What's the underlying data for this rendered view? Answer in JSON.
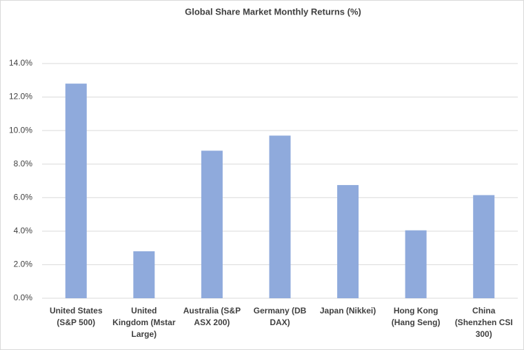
{
  "chart_data": {
    "type": "bar",
    "title": "Global Share Market Monthly Returns (%)",
    "categories": [
      "United States (S&P 500)",
      "United Kingdom (Mstar Large)",
      "Australia (S&P ASX 200)",
      "Germany (DB DAX)",
      "Japan (Nikkei)",
      "Hong Kong (Hang Seng)",
      "China (Shenzhen CSI 300)"
    ],
    "values": [
      12.8,
      2.8,
      8.8,
      9.7,
      6.75,
      4.05,
      6.15
    ],
    "color": "#8faadc",
    "ylim": [
      0,
      14
    ],
    "yticks": [
      {
        "value": 0,
        "label": "0.0%"
      },
      {
        "value": 2,
        "label": "2.0%"
      },
      {
        "value": 4,
        "label": "4.0%"
      },
      {
        "value": 6,
        "label": "6.0%"
      },
      {
        "value": 8,
        "label": "8.0%"
      },
      {
        "value": 10,
        "label": "10.0%"
      },
      {
        "value": 12,
        "label": "12.0%"
      },
      {
        "value": 14,
        "label": "14.0%"
      }
    ],
    "grid": true
  }
}
